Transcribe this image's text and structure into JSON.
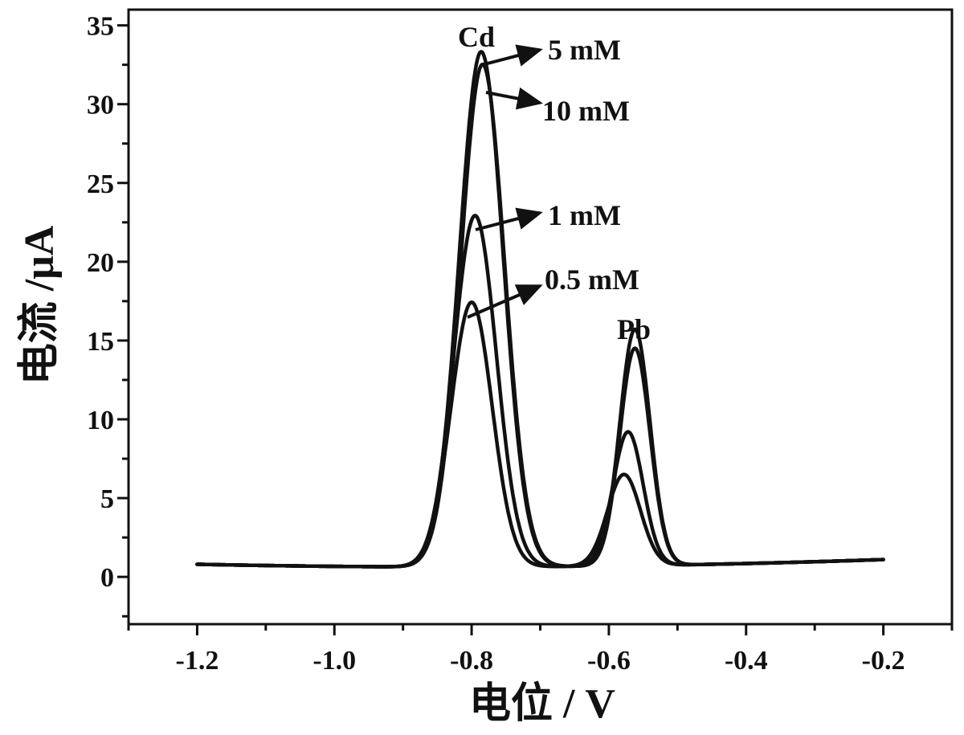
{
  "chart_data": {
    "type": "line",
    "xlabel": "电位 / V",
    "ylabel": "电流 /μA",
    "xlim": [
      -1.3,
      -0.1
    ],
    "ylim": [
      -3,
      36
    ],
    "x_ticks": [
      -1.2,
      -1.0,
      -0.8,
      -0.6,
      -0.4,
      -0.2
    ],
    "x_tick_labels": [
      "-1.2",
      "-1.0",
      "-0.8",
      "-0.6",
      "-0.4",
      "-0.2"
    ],
    "y_ticks": [
      0,
      5,
      10,
      15,
      20,
      25,
      30,
      35
    ],
    "y_tick_labels": [
      "0",
      "5",
      "10",
      "15",
      "20",
      "25",
      "30",
      "35"
    ],
    "grid": false,
    "legend": "none",
    "line_color": "#111111",
    "x_range": [
      -1.2,
      -0.2
    ],
    "series": [
      {
        "cd_peak_x": -0.8,
        "cd_peak_y": 16.8,
        "cd_width": 0.03,
        "pb_peak_x": -0.578,
        "pb_peak_y": 5.8,
        "pb_width": 0.024
      },
      {
        "cd_peak_x": -0.795,
        "cd_peak_y": 22.3,
        "cd_width": 0.031,
        "pb_peak_x": -0.572,
        "pb_peak_y": 8.5,
        "pb_width": 0.022
      },
      {
        "cd_peak_x": -0.786,
        "cd_peak_y": 32.7,
        "cd_width": 0.032,
        "pb_peak_x": -0.562,
        "pb_peak_y": 15.0,
        "pb_width": 0.022
      },
      {
        "cd_peak_x": -0.784,
        "cd_peak_y": 31.9,
        "cd_width": 0.032,
        "pb_peak_x": -0.562,
        "pb_peak_y": 13.8,
        "pb_width": 0.022
      }
    ],
    "annotations": {
      "cd_label": "Cd",
      "pb_label": "Pb",
      "c5": "5 mM",
      "c10": "10 mM",
      "c1": "1 mM",
      "c05": "0.5 mM"
    }
  }
}
